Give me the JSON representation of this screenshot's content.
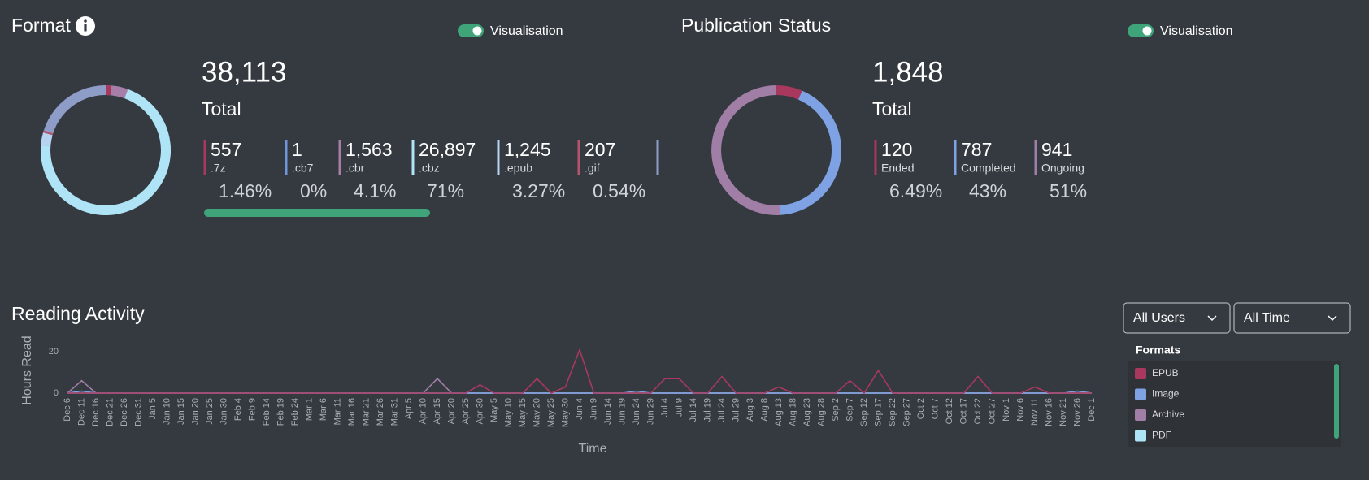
{
  "format": {
    "title": "Format",
    "toggle_label": "Visualisation",
    "total": {
      "value": 38113,
      "label": "38,113"
    },
    "total_label": "Total",
    "items": [
      {
        "name": ".7z",
        "count": 557,
        "percent": "1.46%",
        "color": "#a8385e"
      },
      {
        "name": ".cb7",
        "count": 1,
        "percent": "0%",
        "color": "#6f96dd"
      },
      {
        "name": ".cbr",
        "count": {
          "value": 1563,
          "label": "1,563"
        },
        "percent": "4.1%",
        "color": "#a77ea8"
      },
      {
        "name": ".cbz",
        "count": {
          "value": 26897,
          "label": "26,897"
        },
        "percent": "71%",
        "color": "#aee4f6"
      },
      {
        "name": ".epub",
        "count": {
          "value": 1245,
          "label": "1,245"
        },
        "percent": "3.27%",
        "color": "#b7d3f2"
      },
      {
        "name": ".gif",
        "count": 207,
        "percent": "0.54%",
        "color": "#b5546c"
      }
    ]
  },
  "publication_status": {
    "title": "Publication Status",
    "toggle_label": "Visualisation",
    "total": {
      "value": 1848,
      "label": "1,848"
    },
    "total_label": "Total",
    "items": [
      {
        "name": "Ended",
        "count": 120,
        "percent": "6.49%",
        "color": "#a8385e"
      },
      {
        "name": "Completed",
        "count": 787,
        "percent": "43%",
        "color": "#7ea2e3"
      },
      {
        "name": "Ongoing",
        "count": 941,
        "percent": "51%",
        "color": "#a17ea6"
      }
    ]
  },
  "reading_activity": {
    "title": "Reading Activity",
    "filters": [
      "All Users",
      "All Time"
    ],
    "legend_title": "Formats",
    "chart_data": {
      "type": "line",
      "y_label": "Hours Read",
      "x_label": "Time",
      "categories": [
        "Dec 6",
        "Dec 11",
        "Dec 16",
        "Dec 21",
        "Dec 26",
        "Dec 31",
        "Jan 5",
        "Jan 10",
        "Jan 15",
        "Jan 20",
        "Jan 25",
        "Jan 30",
        "Feb 4",
        "Feb 9",
        "Feb 14",
        "Feb 19",
        "Feb 24",
        "Mar 1",
        "Mar 6",
        "Mar 11",
        "Mar 16",
        "Mar 21",
        "Mar 26",
        "Mar 31",
        "Apr 5",
        "Apr 10",
        "Apr 15",
        "Apr 20",
        "Apr 25",
        "Apr 30",
        "May 5",
        "May 10",
        "May 15",
        "May 20",
        "May 25",
        "May 30",
        "Jun 4",
        "Jun 9",
        "Jun 14",
        "Jun 19",
        "Jun 24",
        "Jun 29",
        "Jul 4",
        "Jul 9",
        "Jul 14",
        "Jul 19",
        "Jul 24",
        "Jul 29",
        "Aug 3",
        "Aug 8",
        "Aug 13",
        "Aug 18",
        "Aug 23",
        "Aug 28",
        "Sep 2",
        "Sep 7",
        "Sep 12",
        "Sep 17",
        "Sep 22",
        "Sep 27",
        "Oct 2",
        "Oct 7",
        "Oct 12",
        "Oct 17",
        "Oct 22",
        "Oct 27",
        "Nov 1",
        "Nov 6",
        "Nov 11",
        "Nov 16",
        "Nov 21",
        "Nov 26",
        "Dec 1"
      ],
      "series": [
        {
          "name": "EPUB",
          "color": "#a8385e",
          "values": [
            0,
            0,
            0,
            0,
            0,
            0,
            0,
            0,
            0,
            0,
            0,
            0,
            0,
            0,
            0,
            0,
            0,
            0,
            0,
            0,
            0,
            0,
            0,
            0,
            0,
            0,
            0,
            0,
            0,
            4,
            0,
            0,
            0,
            7,
            0,
            3,
            21,
            0,
            0,
            0,
            0,
            0,
            7,
            7,
            0,
            0,
            8,
            0,
            0,
            0,
            3,
            0,
            0,
            0,
            0,
            6,
            0,
            11,
            0,
            0,
            0,
            0,
            0,
            0,
            8,
            0,
            0,
            0,
            3,
            0,
            0,
            0,
            0
          ]
        },
        {
          "name": "Image",
          "color": "#7ea2e3",
          "values": [
            0,
            1,
            0,
            0,
            0,
            0,
            0,
            0,
            0,
            0,
            0,
            0,
            0,
            0,
            0,
            0,
            0,
            0,
            0,
            0,
            0,
            0,
            0,
            0,
            0,
            0,
            0,
            0,
            0,
            0,
            0,
            0,
            0,
            0,
            0,
            0,
            0,
            0,
            0,
            0,
            1,
            0,
            0,
            0,
            0,
            0,
            0,
            0,
            0,
            0,
            0,
            0,
            0,
            0,
            0,
            0,
            0,
            0,
            0,
            0,
            0,
            0,
            0,
            0,
            0,
            0,
            0,
            0,
            0,
            0,
            0,
            1,
            0
          ]
        },
        {
          "name": "Archive",
          "color": "#a17ea6",
          "values": [
            0,
            6,
            0,
            0,
            0,
            0,
            0,
            0,
            0,
            0,
            0,
            0,
            0,
            0,
            0,
            0,
            0,
            0,
            0,
            0,
            0,
            0,
            0,
            0,
            0,
            0,
            7,
            0,
            0,
            0,
            0,
            0,
            0,
            0,
            0,
            0,
            0,
            0,
            0,
            0,
            0,
            0,
            0,
            0,
            0,
            0,
            0,
            0,
            0,
            0,
            0,
            0,
            0,
            0,
            0,
            0,
            0,
            0,
            0,
            0,
            0,
            0,
            0,
            0,
            0,
            0,
            0,
            0,
            0,
            0,
            0,
            0,
            0
          ]
        },
        {
          "name": "PDF",
          "color": "#aee4f6",
          "values": [
            0,
            0,
            0,
            0,
            0,
            0,
            0,
            0,
            0,
            0,
            0,
            0,
            0,
            0,
            0,
            0,
            0,
            0,
            0,
            0,
            0,
            0,
            0,
            0,
            0,
            0,
            0,
            0,
            0,
            0,
            0,
            0,
            0,
            0,
            0,
            0,
            0,
            0,
            0,
            0,
            0,
            0,
            0,
            0,
            0,
            0,
            0,
            0,
            0,
            0,
            0,
            0,
            0,
            0,
            0,
            0,
            0,
            0,
            0,
            0,
            0,
            0,
            0,
            0,
            0,
            0,
            0,
            0,
            0,
            0,
            0,
            0,
            0
          ]
        }
      ],
      "ylim": [
        0,
        22
      ],
      "yticks": [
        0,
        20
      ]
    }
  }
}
